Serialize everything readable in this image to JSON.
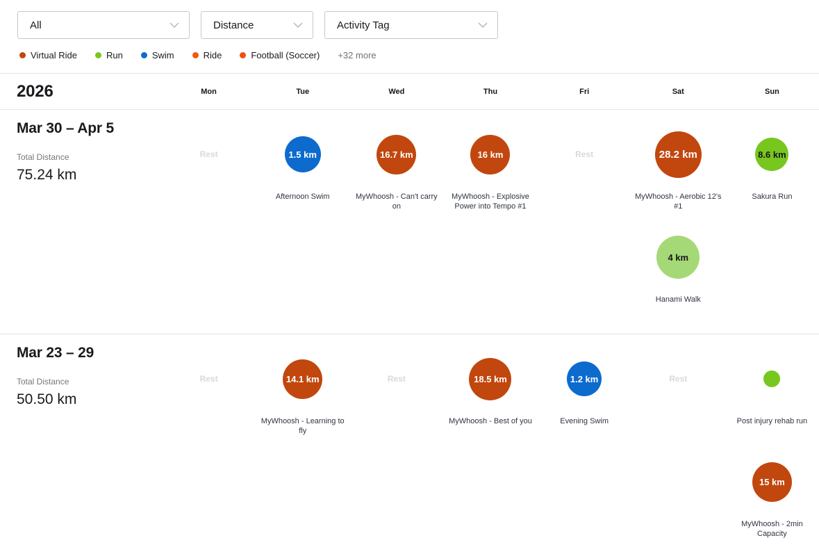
{
  "filters": [
    {
      "name": "sport-type",
      "value": "All"
    },
    {
      "name": "metric",
      "value": "Distance"
    },
    {
      "name": "activity-tag",
      "value": "Activity Tag"
    }
  ],
  "legend": {
    "items": [
      {
        "label": "Virtual Ride",
        "color": "#c1470e"
      },
      {
        "label": "Run",
        "color": "#78c71f"
      },
      {
        "label": "Swim",
        "color": "#0c6bcd"
      },
      {
        "label": "Ride",
        "color": "#f4580e"
      },
      {
        "label": "Football (Soccer)",
        "color": "#f24f0e"
      }
    ],
    "more_label": "+32 more"
  },
  "calendar": {
    "year": "2026",
    "day_headers": [
      "Mon",
      "Tue",
      "Wed",
      "Thu",
      "Fri",
      "Sat",
      "Sun"
    ],
    "rest_label": "Rest",
    "total_distance_label": "Total Distance",
    "weeks": [
      {
        "title": "Mar 30 – Apr 5",
        "total_distance": "75.24 km",
        "rows": [
          {
            "cells": [
              {
                "type": "rest"
              },
              {
                "type": "activity",
                "value": "1.5 km",
                "label": "Afternoon Swim",
                "color": "#0c6bcd",
                "text_color": "#ffffff",
                "size": 52
              },
              {
                "type": "activity",
                "value": "16.7 km",
                "label": "MyWhoosh - Can't carry on",
                "color": "#c1470e",
                "text_color": "#ffffff",
                "size": 57
              },
              {
                "type": "activity",
                "value": "16 km",
                "label": "MyWhoosh - Explosive Power into Tempo #1",
                "color": "#c1470e",
                "text_color": "#ffffff",
                "size": 57
              },
              {
                "type": "rest"
              },
              {
                "type": "activity",
                "value": "28.2 km",
                "label": "MyWhoosh - Aerobic 12's #1",
                "color": "#c1470e",
                "text_color": "#ffffff",
                "size": 67
              },
              {
                "type": "activity",
                "value": "8.6 km",
                "label": "Sakura Run",
                "color": "#78c71f",
                "text_color": "#16161a",
                "size": 48
              }
            ]
          },
          {
            "cells": [
              {
                "type": "empty"
              },
              {
                "type": "empty"
              },
              {
                "type": "empty"
              },
              {
                "type": "empty"
              },
              {
                "type": "empty"
              },
              {
                "type": "activity",
                "value": "4 km",
                "label": "Hanami Walk",
                "color": "#a5d977",
                "text_color": "#16161a",
                "size": 62
              },
              {
                "type": "empty"
              }
            ]
          }
        ]
      },
      {
        "title": "Mar 23 – 29",
        "total_distance": "50.50 km",
        "rows": [
          {
            "cells": [
              {
                "type": "rest"
              },
              {
                "type": "activity",
                "value": "14.1 km",
                "label": "MyWhoosh - Learning to fly",
                "color": "#c1470e",
                "text_color": "#ffffff",
                "size": 57
              },
              {
                "type": "rest"
              },
              {
                "type": "activity",
                "value": "18.5 km",
                "label": "MyWhoosh - Best of you",
                "color": "#c1470e",
                "text_color": "#ffffff",
                "size": 61
              },
              {
                "type": "activity",
                "value": "1.2 km",
                "label": "Evening Swim",
                "color": "#0c6bcd",
                "text_color": "#ffffff",
                "size": 50
              },
              {
                "type": "rest"
              },
              {
                "type": "activity",
                "value": "",
                "label": "Post injury rehab run",
                "color": "#78c71f",
                "text_color": "#16161a",
                "size": 24
              }
            ]
          },
          {
            "cells": [
              {
                "type": "empty"
              },
              {
                "type": "empty"
              },
              {
                "type": "empty"
              },
              {
                "type": "empty"
              },
              {
                "type": "empty"
              },
              {
                "type": "empty"
              },
              {
                "type": "activity",
                "value": "15 km",
                "label": "MyWhoosh - 2min Capacity",
                "color": "#c1470e",
                "text_color": "#ffffff",
                "size": 57
              }
            ]
          }
        ]
      }
    ]
  }
}
